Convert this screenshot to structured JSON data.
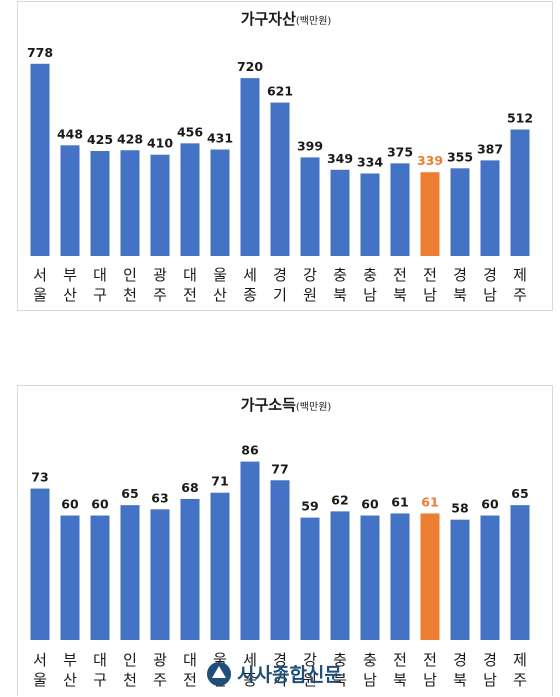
{
  "colors": {
    "bar": "#4472c4",
    "highlight": "#ed7d31",
    "text": "#1a1a1a"
  },
  "chart_data": [
    {
      "type": "bar",
      "title": "가구자산",
      "title_unit": "(백만원)",
      "categories": [
        "서울",
        "부산",
        "대구",
        "인천",
        "광주",
        "대전",
        "울산",
        "세종",
        "경기",
        "강원",
        "충북",
        "충남",
        "전북",
        "전남",
        "경북",
        "경남",
        "제주"
      ],
      "category_labels": [
        [
          "서",
          "울"
        ],
        [
          "부",
          "산"
        ],
        [
          "대",
          "구"
        ],
        [
          "인",
          "천"
        ],
        [
          "광",
          "주"
        ],
        [
          "대",
          "전"
        ],
        [
          "울",
          "산"
        ],
        [
          "세",
          "종"
        ],
        [
          "경",
          "기"
        ],
        [
          "강",
          "원"
        ],
        [
          "충",
          "북"
        ],
        [
          "충",
          "남"
        ],
        [
          "전",
          "북"
        ],
        [
          "전",
          "남"
        ],
        [
          "경",
          "북"
        ],
        [
          "경",
          "남"
        ],
        [
          "제",
          "주"
        ]
      ],
      "values": [
        778,
        448,
        425,
        428,
        410,
        456,
        431,
        720,
        621,
        399,
        349,
        334,
        375,
        339,
        355,
        387,
        512
      ],
      "highlight_index": 13,
      "ylim": [
        0,
        850
      ],
      "grid": false,
      "legend": "none"
    },
    {
      "type": "bar",
      "title": "가구소득",
      "title_unit": "(백만원)",
      "categories": [
        "서울",
        "부산",
        "대구",
        "인천",
        "광주",
        "대전",
        "울산",
        "세종",
        "경기",
        "강원",
        "충북",
        "충남",
        "전북",
        "전남",
        "경북",
        "경남",
        "제주"
      ],
      "category_labels": [
        [
          "서",
          "울"
        ],
        [
          "부",
          "산"
        ],
        [
          "대",
          "구"
        ],
        [
          "인",
          "천"
        ],
        [
          "광",
          "주"
        ],
        [
          "대",
          "전"
        ],
        [
          "울",
          "산"
        ],
        [
          "세",
          "종"
        ],
        [
          "경",
          "기"
        ],
        [
          "강",
          "원"
        ],
        [
          "충",
          "북"
        ],
        [
          "충",
          "남"
        ],
        [
          "전",
          "북"
        ],
        [
          "전",
          "남"
        ],
        [
          "경",
          "북"
        ],
        [
          "경",
          "남"
        ],
        [
          "제",
          "주"
        ]
      ],
      "values": [
        73,
        60,
        60,
        65,
        63,
        68,
        71,
        86,
        77,
        59,
        62,
        60,
        61,
        61,
        58,
        60,
        65
      ],
      "highlight_index": 13,
      "ylim": [
        0,
        94
      ],
      "grid": false,
      "legend": "none"
    }
  ],
  "watermark": {
    "text": "시사종합신문"
  }
}
